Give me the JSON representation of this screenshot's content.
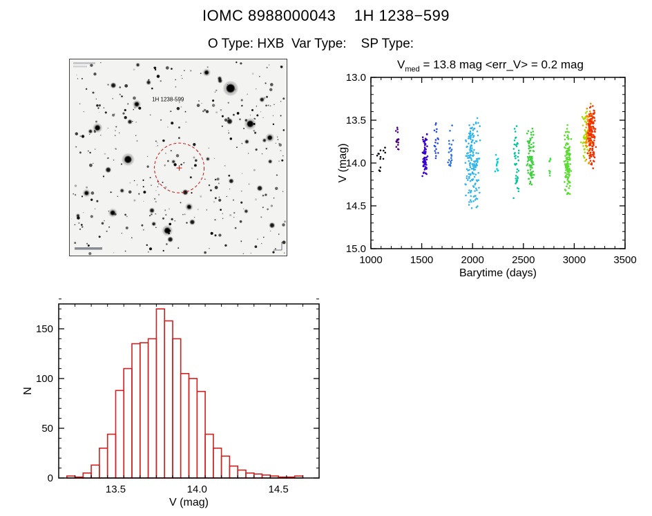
{
  "page": {
    "title": "IOMC 8988000043    1H 1238−599",
    "subtitle": "O Type: HXB  Var Type:    SP Type:"
  },
  "finding_chart": {
    "target_label": "1H 1238-599"
  },
  "chart_data": [
    {
      "type": "scatter",
      "title": {
        "base": "V",
        "sub": "med",
        "rest": " = 13.8 mag <err_V> = 0.2 mag"
      },
      "xlabel": "Barytime (days)",
      "ylabel": "V (mag)",
      "xlim": [
        1000,
        3500
      ],
      "ylim_top": 13.0,
      "ylim_bottom": 15.0,
      "xticks": [
        1000,
        1500,
        2000,
        2500,
        3000,
        3500
      ],
      "yticks": [
        13.0,
        13.5,
        14.0,
        14.5,
        15.0
      ],
      "x_minor": 100,
      "y_minor": 0.1,
      "clusters": [
        {
          "t": 1100,
          "dt": 45,
          "v_lo": 13.72,
          "v_hi": 14.12,
          "n": 13,
          "color": "#000014"
        },
        {
          "t": 1255,
          "dt": 30,
          "v_lo": 13.5,
          "v_hi": 13.97,
          "n": 16,
          "color": "#4b0082"
        },
        {
          "t": 1530,
          "dt": 28,
          "v_lo": 13.58,
          "v_hi": 14.28,
          "n": 70,
          "color": "#3800cc"
        },
        {
          "t": 1645,
          "dt": 30,
          "v_lo": 13.5,
          "v_hi": 13.97,
          "n": 18,
          "color": "#2244ee"
        },
        {
          "t": 1785,
          "dt": 35,
          "v_lo": 13.55,
          "v_hi": 14.15,
          "n": 22,
          "color": "#2a6cf0"
        },
        {
          "t": 2000,
          "dt": 80,
          "v_lo": 13.4,
          "v_hi": 14.62,
          "n": 170,
          "color": "#30b4ec"
        },
        {
          "t": 2230,
          "dt": 25,
          "v_lo": 13.85,
          "v_hi": 14.18,
          "n": 12,
          "color": "#00cfd8"
        },
        {
          "t": 2430,
          "dt": 30,
          "v_lo": 13.5,
          "v_hi": 14.5,
          "n": 42,
          "color": "#00c49a"
        },
        {
          "t": 2570,
          "dt": 40,
          "v_lo": 13.55,
          "v_hi": 14.32,
          "n": 85,
          "color": "#3ed03e"
        },
        {
          "t": 2760,
          "dt": 20,
          "v_lo": 13.88,
          "v_hi": 14.22,
          "n": 9,
          "color": "#4ade4a"
        },
        {
          "t": 2935,
          "dt": 40,
          "v_lo": 13.48,
          "v_hi": 14.44,
          "n": 110,
          "color": "#58dc2e"
        },
        {
          "t": 3105,
          "dt": 45,
          "v_lo": 13.35,
          "v_hi": 14.05,
          "n": 45,
          "color": "#a0e000"
        },
        {
          "t": 3145,
          "dt": 40,
          "v_lo": 13.25,
          "v_hi": 14.06,
          "n": 70,
          "color": "#ff8c00"
        },
        {
          "t": 3170,
          "dt": 45,
          "v_lo": 13.22,
          "v_hi": 14.1,
          "n": 130,
          "color": "#f03000"
        }
      ]
    },
    {
      "type": "histogram",
      "xlabel": "V (mag)",
      "ylabel": "N",
      "xlim": [
        13.15,
        14.75
      ],
      "ylim": [
        0,
        175
      ],
      "xticks": [
        13.5,
        14.0,
        14.5
      ],
      "yticks": [
        0,
        50,
        100,
        150
      ],
      "x_minor": 0.1,
      "y_minor": 10,
      "bin_start": 13.2,
      "bin_width": 0.05,
      "counts": [
        2,
        1,
        5,
        13,
        30,
        44,
        88,
        110,
        135,
        136,
        140,
        170,
        158,
        140,
        105,
        100,
        87,
        44,
        30,
        22,
        12,
        8,
        5,
        4,
        3,
        2,
        1,
        1,
        2
      ],
      "color": "#d02020"
    }
  ]
}
